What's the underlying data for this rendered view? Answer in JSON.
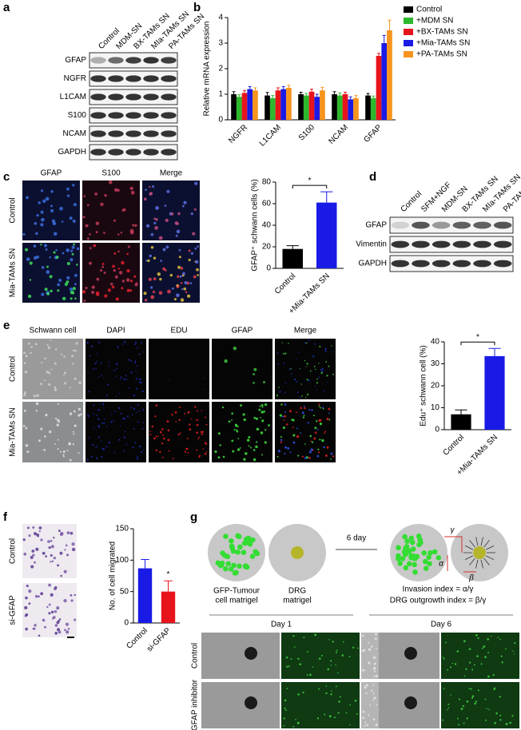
{
  "panel_a": {
    "label": "a",
    "lanes": [
      "Control",
      "MDM-SN",
      "BX-TAMs SN",
      "MIa-TAMs SN",
      "PA-TAMs SN"
    ],
    "rows": [
      "GFAP",
      "NGFR",
      "L1CAM",
      "S100",
      "NCAM",
      "GAPDH"
    ]
  },
  "panel_b": {
    "label": "b"
  },
  "panel_c": {
    "label": "c",
    "columns": [
      "GFAP",
      "S100",
      "Merge"
    ],
    "rows": [
      "Control",
      "Mia-TAMs SN"
    ]
  },
  "panel_d": {
    "label": "d",
    "lanes": [
      "Control",
      "SFM+NGF",
      "MDM-SN",
      "BX-TAMs SN",
      "MIa-TAMs SN",
      "PA-TAMs SN"
    ],
    "rows": [
      "GFAP",
      "Vimentin",
      "GAPDH"
    ]
  },
  "panel_e": {
    "label": "e",
    "columns": [
      "Schwann cell",
      "DAPI",
      "EDU",
      "GFAP",
      "Merge"
    ],
    "rows": [
      "Control",
      "Mia-TAMs SN"
    ]
  },
  "panel_f": {
    "label": "f",
    "rows": [
      "Control",
      "si-GFAP"
    ]
  },
  "panel_g": {
    "label": "g",
    "tumour_label": [
      "GFP-Tumour",
      "cell matrigel"
    ],
    "drg_label": [
      "DRG",
      "matrigel"
    ],
    "arrow_label": "6 day",
    "gamma": "γ",
    "alpha": "α",
    "beta": "β",
    "invasion": "Invasion index = α/γ",
    "outgrowth": "DRG outgrowth index = β/γ",
    "days": [
      "Day 1",
      "Day 6"
    ],
    "rows": [
      "Control",
      "GFAP inhibitor"
    ]
  },
  "chart_data": [
    {
      "type": "bar",
      "ylabel": "Relative mRNA expression",
      "categories": [
        "NGFR",
        "L1CAM",
        "S100",
        "NCAM",
        "GFAP"
      ],
      "ylim": [
        0,
        4
      ],
      "yticks": [
        0,
        1,
        2,
        3,
        4
      ],
      "series": [
        {
          "name": "Control",
          "color": "#000000",
          "values": [
            1.0,
            0.95,
            1.0,
            1.0,
            0.95
          ],
          "errors": [
            0.1,
            0.12,
            0.08,
            0.1,
            0.08
          ]
        },
        {
          "name": "+MDM SN",
          "color": "#2db82d",
          "values": [
            0.9,
            0.85,
            0.95,
            0.95,
            0.85
          ],
          "errors": [
            0.08,
            0.1,
            0.08,
            0.1,
            0.08
          ]
        },
        {
          "name": "+BX-TAMs SN",
          "color": "#e8141b",
          "values": [
            1.05,
            1.15,
            1.1,
            1.0,
            2.5
          ],
          "errors": [
            0.1,
            0.1,
            0.1,
            0.08,
            0.1
          ]
        },
        {
          "name": "+Mia-TAMs SN",
          "color": "#1a1ae6",
          "values": [
            1.2,
            1.2,
            0.9,
            0.8,
            3.0
          ],
          "errors": [
            0.1,
            0.1,
            0.1,
            0.1,
            0.3
          ]
        },
        {
          "name": "+PA-TAMs SN",
          "color": "#f7941d",
          "values": [
            1.15,
            1.25,
            1.15,
            0.85,
            3.5
          ],
          "errors": [
            0.1,
            0.1,
            0.12,
            0.1,
            0.4
          ]
        }
      ]
    },
    {
      "type": "bar",
      "ylabel": "GFAP⁺ schwann cells (%)",
      "categories": [
        "Control",
        "+Mia-TAMs SN"
      ],
      "values": [
        18,
        61
      ],
      "errors": [
        3,
        10
      ],
      "colors": [
        "#000000",
        "#1a1ae6"
      ],
      "ylim": [
        0,
        80
      ],
      "yticks": [
        0,
        20,
        40,
        60,
        80
      ],
      "annotation": "*"
    },
    {
      "type": "bar",
      "ylabel": "Edu⁺ schwann cell (%)",
      "categories": [
        "Control",
        "+Mia-TAMs SN"
      ],
      "values": [
        7,
        33.5
      ],
      "errors": [
        2,
        3.5
      ],
      "colors": [
        "#000000",
        "#1a1ae6"
      ],
      "ylim": [
        0,
        40
      ],
      "yticks": [
        0,
        10,
        20,
        30,
        40
      ],
      "annotation": "*"
    },
    {
      "type": "bar",
      "ylabel": "No. of cell migrated",
      "categories": [
        "Control",
        "si-GFAP"
      ],
      "values": [
        87,
        50
      ],
      "errors": [
        14,
        17
      ],
      "colors": [
        "#1a1ae6",
        "#e8141b"
      ],
      "ylim": [
        0,
        150
      ],
      "yticks": [
        0,
        50,
        100,
        150
      ],
      "annotation": "*"
    }
  ]
}
